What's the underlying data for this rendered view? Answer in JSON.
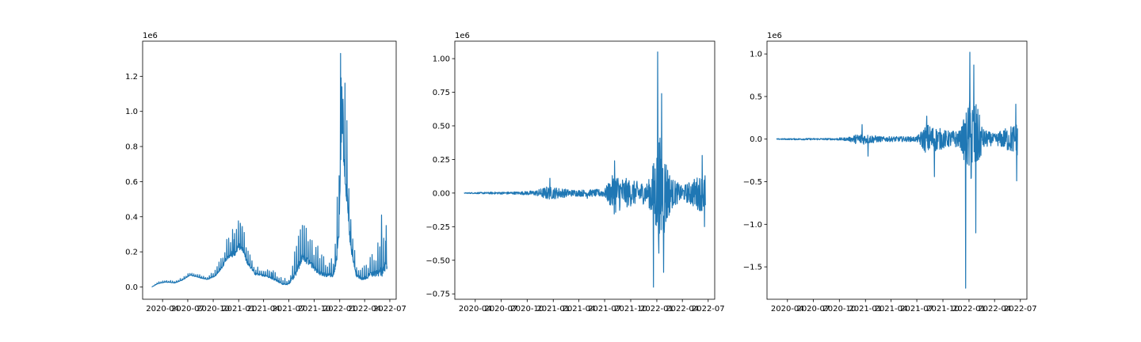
{
  "figure": {
    "line_color": "#1f77b4",
    "background": "#ffffff"
  },
  "chart_data": [
    {
      "type": "line",
      "title": "",
      "xlabel": "",
      "ylabel": "",
      "offset_label": "1e6",
      "x_range": [
        "2020-02-22",
        "2022-06-21"
      ],
      "xlim": [
        "2020-01-20",
        "2022-07-24"
      ],
      "xticks": [
        {
          "date": "2020-04-01",
          "label": "2020-04"
        },
        {
          "date": "2020-07-01",
          "label": "2020-07"
        },
        {
          "date": "2020-10-01",
          "label": "2020-10"
        },
        {
          "date": "2021-01-01",
          "label": "2021-01"
        },
        {
          "date": "2021-04-01",
          "label": "2021-04"
        },
        {
          "date": "2021-07-01",
          "label": "2021-07"
        },
        {
          "date": "2021-10-01",
          "label": "2021-10"
        },
        {
          "date": "2022-01-01",
          "label": "2022-01"
        },
        {
          "date": "2022-04-01",
          "label": "2022-04"
        },
        {
          "date": "2022-07-01",
          "label": "2022-07"
        }
      ],
      "ylim": [
        -0.07,
        1.4
      ],
      "yticks": [
        {
          "value": 0.0,
          "label": "0.0"
        },
        {
          "value": 0.2,
          "label": "0.2"
        },
        {
          "value": 0.4,
          "label": "0.4"
        },
        {
          "value": 0.6,
          "label": "0.6"
        },
        {
          "value": 0.8,
          "label": "0.8"
        },
        {
          "value": 1.0,
          "label": "1.0"
        },
        {
          "value": 1.2,
          "label": "1.2"
        }
      ],
      "series": [
        {
          "style": "level",
          "x": [
            "2020-02-22",
            "2020-03-15",
            "2020-04-10",
            "2020-05-15",
            "2020-06-10",
            "2020-07-10",
            "2020-08-15",
            "2020-09-10",
            "2020-10-10",
            "2020-11-01",
            "2020-11-25",
            "2020-12-20",
            "2021-01-10",
            "2021-02-01",
            "2021-03-01",
            "2021-04-10",
            "2021-05-10",
            "2021-06-10",
            "2021-07-01",
            "2021-08-01",
            "2021-08-20",
            "2021-09-20",
            "2021-10-20",
            "2021-11-15",
            "2021-12-10",
            "2021-12-28",
            "2022-01-08",
            "2022-01-15",
            "2022-01-25",
            "2022-02-10",
            "2022-03-01",
            "2022-03-25",
            "2022-04-20",
            "2022-05-15",
            "2022-06-05",
            "2022-06-21"
          ],
          "values": [
            0.0,
            0.02,
            0.03,
            0.025,
            0.04,
            0.07,
            0.055,
            0.045,
            0.07,
            0.12,
            0.19,
            0.22,
            0.26,
            0.15,
            0.08,
            0.07,
            0.05,
            0.02,
            0.02,
            0.12,
            0.2,
            0.15,
            0.1,
            0.08,
            0.08,
            0.3,
            1.0,
            0.85,
            0.6,
            0.25,
            0.08,
            0.05,
            0.08,
            0.1,
            0.12,
            0.18
          ],
          "amplitude": [
            0.0,
            0.005,
            0.008,
            0.007,
            0.008,
            0.01,
            0.01,
            0.01,
            0.02,
            0.04,
            0.08,
            0.1,
            0.1,
            0.05,
            0.03,
            0.03,
            0.03,
            0.02,
            0.02,
            0.12,
            0.12,
            0.1,
            0.08,
            0.06,
            0.06,
            0.25,
            0.3,
            0.35,
            0.3,
            0.15,
            0.05,
            0.04,
            0.07,
            0.1,
            0.15,
            0.2
          ],
          "spikes": [
            {
              "x": "2020-12-15",
              "value": 0.27
            },
            {
              "x": "2021-01-08",
              "value": 0.33
            },
            {
              "x": "2021-05-01",
              "value": 0.08
            },
            {
              "x": "2021-08-05",
              "value": 0.29
            },
            {
              "x": "2022-01-04",
              "value": 1.33
            },
            {
              "x": "2022-01-09",
              "value": 1.14
            },
            {
              "x": "2022-01-14",
              "value": 0.95
            },
            {
              "x": "2022-06-01",
              "value": 0.41
            },
            {
              "x": "2022-06-18",
              "value": 0.35
            }
          ]
        }
      ]
    },
    {
      "type": "line",
      "title": "",
      "xlabel": "",
      "ylabel": "",
      "offset_label": "1e6",
      "x_range": [
        "2020-02-22",
        "2022-06-21"
      ],
      "xlim": [
        "2020-01-20",
        "2022-07-24"
      ],
      "xticks": [
        {
          "date": "2020-04-01",
          "label": "2020-04"
        },
        {
          "date": "2020-07-01",
          "label": "2020-07"
        },
        {
          "date": "2020-10-01",
          "label": "2020-10"
        },
        {
          "date": "2021-01-01",
          "label": "2021-01"
        },
        {
          "date": "2021-04-01",
          "label": "2021-04"
        },
        {
          "date": "2021-07-01",
          "label": "2021-07"
        },
        {
          "date": "2021-10-01",
          "label": "2021-10"
        },
        {
          "date": "2022-01-01",
          "label": "2022-01"
        },
        {
          "date": "2022-04-01",
          "label": "2022-04"
        },
        {
          "date": "2022-07-01",
          "label": "2022-07"
        }
      ],
      "ylim": [
        -0.79,
        1.13
      ],
      "yticks": [
        {
          "value": -0.75,
          "label": "−0.75"
        },
        {
          "value": -0.5,
          "label": "−0.50"
        },
        {
          "value": -0.25,
          "label": "−0.25"
        },
        {
          "value": 0.0,
          "label": "0.00"
        },
        {
          "value": 0.25,
          "label": "0.25"
        },
        {
          "value": 0.5,
          "label": "0.50"
        },
        {
          "value": 0.75,
          "label": "0.75"
        },
        {
          "value": 1.0,
          "label": "1.00"
        }
      ],
      "series": [
        {
          "style": "diff",
          "x": [
            "2020-02-22",
            "2020-06-01",
            "2020-09-01",
            "2020-11-01",
            "2020-12-10",
            "2021-01-20",
            "2021-03-01",
            "2021-05-01",
            "2021-07-01",
            "2021-08-05",
            "2021-09-01",
            "2021-10-15",
            "2021-12-01",
            "2021-12-28",
            "2022-01-08",
            "2022-01-25",
            "2022-02-20",
            "2022-04-01",
            "2022-05-20",
            "2022-06-21"
          ],
          "values": [
            0,
            0,
            0,
            0,
            0,
            0,
            0,
            0,
            0,
            0,
            0,
            0,
            0,
            0,
            0,
            0,
            0,
            0,
            0,
            0
          ],
          "amplitude": [
            0.003,
            0.008,
            0.01,
            0.02,
            0.05,
            0.04,
            0.025,
            0.025,
            0.03,
            0.16,
            0.12,
            0.09,
            0.08,
            0.3,
            0.45,
            0.35,
            0.12,
            0.05,
            0.12,
            0.15
          ],
          "spikes": [
            {
              "x": "2020-12-20",
              "value": 0.11
            },
            {
              "x": "2021-05-01",
              "value": -0.04
            },
            {
              "x": "2021-08-05",
              "value": 0.24
            },
            {
              "x": "2021-12-20",
              "value": -0.7
            },
            {
              "x": "2022-01-04",
              "value": 1.05
            },
            {
              "x": "2022-01-10",
              "value": -0.3
            },
            {
              "x": "2022-01-18",
              "value": 0.74
            },
            {
              "x": "2022-01-25",
              "value": -0.59
            },
            {
              "x": "2022-06-10",
              "value": 0.28
            },
            {
              "x": "2022-06-18",
              "value": -0.25
            }
          ]
        }
      ]
    },
    {
      "type": "line",
      "title": "",
      "xlabel": "",
      "ylabel": "",
      "offset_label": "1e6",
      "x_range": [
        "2020-02-22",
        "2022-06-21"
      ],
      "xlim": [
        "2020-01-20",
        "2022-07-24"
      ],
      "xticks": [
        {
          "date": "2020-04-01",
          "label": "2020-04"
        },
        {
          "date": "2020-07-01",
          "label": "2020-07"
        },
        {
          "date": "2020-10-01",
          "label": "2020-10"
        },
        {
          "date": "2021-01-01",
          "label": "2021-01"
        },
        {
          "date": "2021-04-01",
          "label": "2021-04"
        },
        {
          "date": "2021-07-01",
          "label": "2021-07"
        },
        {
          "date": "2021-10-01",
          "label": "2021-10"
        },
        {
          "date": "2022-01-01",
          "label": "2022-01"
        },
        {
          "date": "2022-04-01",
          "label": "2022-04"
        },
        {
          "date": "2022-07-01",
          "label": "2022-07"
        }
      ],
      "ylim": [
        -1.88,
        1.15
      ],
      "yticks": [
        {
          "value": -1.5,
          "label": "−1.5"
        },
        {
          "value": -1.0,
          "label": "−1.0"
        },
        {
          "value": -0.5,
          "label": "−0.5"
        },
        {
          "value": 0.0,
          "label": "0.0"
        },
        {
          "value": 0.5,
          "label": "0.5"
        },
        {
          "value": 1.0,
          "label": "1.0"
        }
      ],
      "series": [
        {
          "style": "diff",
          "x": [
            "2020-02-22",
            "2020-06-01",
            "2020-09-01",
            "2020-11-01",
            "2020-12-10",
            "2021-01-20",
            "2021-03-01",
            "2021-05-01",
            "2021-07-01",
            "2021-08-05",
            "2021-09-01",
            "2021-10-15",
            "2021-12-01",
            "2021-12-28",
            "2022-01-08",
            "2022-01-25",
            "2022-02-20",
            "2022-04-01",
            "2022-05-20",
            "2022-06-21"
          ],
          "values": [
            0,
            0,
            0,
            0,
            0,
            0,
            0,
            0,
            0,
            0,
            0,
            0,
            0,
            0,
            0,
            0,
            0,
            0,
            0,
            0
          ],
          "amplitude": [
            0.005,
            0.01,
            0.01,
            0.02,
            0.07,
            0.05,
            0.03,
            0.03,
            0.03,
            0.18,
            0.15,
            0.1,
            0.1,
            0.4,
            0.55,
            0.45,
            0.12,
            0.06,
            0.15,
            0.2
          ],
          "spikes": [
            {
              "x": "2020-12-20",
              "value": 0.17
            },
            {
              "x": "2021-01-10",
              "value": -0.2
            },
            {
              "x": "2021-08-05",
              "value": 0.27
            },
            {
              "x": "2021-09-01",
              "value": -0.44
            },
            {
              "x": "2021-12-20",
              "value": -1.75
            },
            {
              "x": "2022-01-04",
              "value": 1.02
            },
            {
              "x": "2022-01-18",
              "value": 0.87
            },
            {
              "x": "2022-01-25",
              "value": -1.1
            },
            {
              "x": "2022-06-15",
              "value": 0.41
            },
            {
              "x": "2022-06-18",
              "value": -0.49
            }
          ]
        }
      ]
    }
  ]
}
